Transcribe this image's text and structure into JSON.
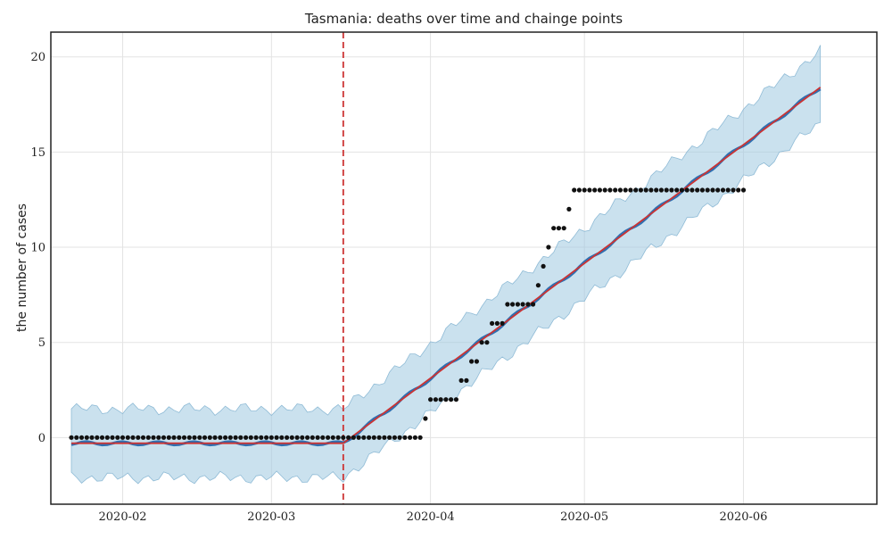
{
  "chart_data": {
    "type": "line",
    "title": "Tasmania: deaths over time and chainge points",
    "xlabel": "",
    "ylabel": "the number of cases",
    "x_ticks": [
      "2020-02",
      "2020-03",
      "2020-04",
      "2020-05",
      "2020-06"
    ],
    "y_ticks": [
      "0",
      "5",
      "10",
      "15",
      "20"
    ],
    "xlim": [
      "2020-01-18",
      "2020-06-27"
    ],
    "ylim": [
      -3.5,
      21.3
    ],
    "grid": true,
    "changepoint": "2020-03-15",
    "colors": {
      "observed": "#111111",
      "forecast": "#2f6fb0",
      "trend": "#cc3333",
      "band": "#9ec8e0",
      "changepoint": "#cc3333"
    },
    "trend_segments": [
      {
        "x0": "2020-01-22",
        "y0": -0.3,
        "x1": "2020-03-15",
        "y1": -0.3
      },
      {
        "x0": "2020-03-15",
        "y0": -0.3,
        "x1": "2020-06-16",
        "y1": 18.4
      }
    ],
    "uncertainty_half_width": {
      "before_changepoint": 1.8,
      "start_after": 1.8,
      "end": 1.9
    },
    "observed": [
      {
        "x": "2020-01-22",
        "y": 0
      },
      {
        "x": "2020-01-23",
        "y": 0
      },
      {
        "x": "2020-01-24",
        "y": 0
      },
      {
        "x": "2020-01-25",
        "y": 0
      },
      {
        "x": "2020-01-26",
        "y": 0
      },
      {
        "x": "2020-01-27",
        "y": 0
      },
      {
        "x": "2020-01-28",
        "y": 0
      },
      {
        "x": "2020-01-29",
        "y": 0
      },
      {
        "x": "2020-01-30",
        "y": 0
      },
      {
        "x": "2020-01-31",
        "y": 0
      },
      {
        "x": "2020-02-01",
        "y": 0
      },
      {
        "x": "2020-02-02",
        "y": 0
      },
      {
        "x": "2020-02-03",
        "y": 0
      },
      {
        "x": "2020-02-04",
        "y": 0
      },
      {
        "x": "2020-02-05",
        "y": 0
      },
      {
        "x": "2020-02-06",
        "y": 0
      },
      {
        "x": "2020-02-07",
        "y": 0
      },
      {
        "x": "2020-02-08",
        "y": 0
      },
      {
        "x": "2020-02-09",
        "y": 0
      },
      {
        "x": "2020-02-10",
        "y": 0
      },
      {
        "x": "2020-02-11",
        "y": 0
      },
      {
        "x": "2020-02-12",
        "y": 0
      },
      {
        "x": "2020-02-13",
        "y": 0
      },
      {
        "x": "2020-02-14",
        "y": 0
      },
      {
        "x": "2020-02-15",
        "y": 0
      },
      {
        "x": "2020-02-16",
        "y": 0
      },
      {
        "x": "2020-02-17",
        "y": 0
      },
      {
        "x": "2020-02-18",
        "y": 0
      },
      {
        "x": "2020-02-19",
        "y": 0
      },
      {
        "x": "2020-02-20",
        "y": 0
      },
      {
        "x": "2020-02-21",
        "y": 0
      },
      {
        "x": "2020-02-22",
        "y": 0
      },
      {
        "x": "2020-02-23",
        "y": 0
      },
      {
        "x": "2020-02-24",
        "y": 0
      },
      {
        "x": "2020-02-25",
        "y": 0
      },
      {
        "x": "2020-02-26",
        "y": 0
      },
      {
        "x": "2020-02-27",
        "y": 0
      },
      {
        "x": "2020-02-28",
        "y": 0
      },
      {
        "x": "2020-02-29",
        "y": 0
      },
      {
        "x": "2020-03-01",
        "y": 0
      },
      {
        "x": "2020-03-02",
        "y": 0
      },
      {
        "x": "2020-03-03",
        "y": 0
      },
      {
        "x": "2020-03-04",
        "y": 0
      },
      {
        "x": "2020-03-05",
        "y": 0
      },
      {
        "x": "2020-03-06",
        "y": 0
      },
      {
        "x": "2020-03-07",
        "y": 0
      },
      {
        "x": "2020-03-08",
        "y": 0
      },
      {
        "x": "2020-03-09",
        "y": 0
      },
      {
        "x": "2020-03-10",
        "y": 0
      },
      {
        "x": "2020-03-11",
        "y": 0
      },
      {
        "x": "2020-03-12",
        "y": 0
      },
      {
        "x": "2020-03-13",
        "y": 0
      },
      {
        "x": "2020-03-14",
        "y": 0
      },
      {
        "x": "2020-03-15",
        "y": 0
      },
      {
        "x": "2020-03-16",
        "y": 0
      },
      {
        "x": "2020-03-17",
        "y": 0
      },
      {
        "x": "2020-03-18",
        "y": 0
      },
      {
        "x": "2020-03-19",
        "y": 0
      },
      {
        "x": "2020-03-20",
        "y": 0
      },
      {
        "x": "2020-03-21",
        "y": 0
      },
      {
        "x": "2020-03-22",
        "y": 0
      },
      {
        "x": "2020-03-23",
        "y": 0
      },
      {
        "x": "2020-03-24",
        "y": 0
      },
      {
        "x": "2020-03-25",
        "y": 0
      },
      {
        "x": "2020-03-26",
        "y": 0
      },
      {
        "x": "2020-03-27",
        "y": 0
      },
      {
        "x": "2020-03-28",
        "y": 0
      },
      {
        "x": "2020-03-29",
        "y": 0
      },
      {
        "x": "2020-03-30",
        "y": 0
      },
      {
        "x": "2020-03-31",
        "y": 1
      },
      {
        "x": "2020-04-01",
        "y": 2
      },
      {
        "x": "2020-04-02",
        "y": 2
      },
      {
        "x": "2020-04-03",
        "y": 2
      },
      {
        "x": "2020-04-04",
        "y": 2
      },
      {
        "x": "2020-04-05",
        "y": 2
      },
      {
        "x": "2020-04-06",
        "y": 2
      },
      {
        "x": "2020-04-07",
        "y": 3
      },
      {
        "x": "2020-04-08",
        "y": 3
      },
      {
        "x": "2020-04-09",
        "y": 4
      },
      {
        "x": "2020-04-10",
        "y": 4
      },
      {
        "x": "2020-04-11",
        "y": 5
      },
      {
        "x": "2020-04-12",
        "y": 5
      },
      {
        "x": "2020-04-13",
        "y": 6
      },
      {
        "x": "2020-04-14",
        "y": 6
      },
      {
        "x": "2020-04-15",
        "y": 6
      },
      {
        "x": "2020-04-16",
        "y": 7
      },
      {
        "x": "2020-04-17",
        "y": 7
      },
      {
        "x": "2020-04-18",
        "y": 7
      },
      {
        "x": "2020-04-19",
        "y": 7
      },
      {
        "x": "2020-04-20",
        "y": 7
      },
      {
        "x": "2020-04-21",
        "y": 7
      },
      {
        "x": "2020-04-22",
        "y": 8
      },
      {
        "x": "2020-04-23",
        "y": 9
      },
      {
        "x": "2020-04-24",
        "y": 10
      },
      {
        "x": "2020-04-25",
        "y": 11
      },
      {
        "x": "2020-04-26",
        "y": 11
      },
      {
        "x": "2020-04-27",
        "y": 11
      },
      {
        "x": "2020-04-28",
        "y": 12
      },
      {
        "x": "2020-04-29",
        "y": 13
      },
      {
        "x": "2020-04-30",
        "y": 13
      },
      {
        "x": "2020-05-01",
        "y": 13
      },
      {
        "x": "2020-05-02",
        "y": 13
      },
      {
        "x": "2020-05-03",
        "y": 13
      },
      {
        "x": "2020-05-04",
        "y": 13
      },
      {
        "x": "2020-05-05",
        "y": 13
      },
      {
        "x": "2020-05-06",
        "y": 13
      },
      {
        "x": "2020-05-07",
        "y": 13
      },
      {
        "x": "2020-05-08",
        "y": 13
      },
      {
        "x": "2020-05-09",
        "y": 13
      },
      {
        "x": "2020-05-10",
        "y": 13
      },
      {
        "x": "2020-05-11",
        "y": 13
      },
      {
        "x": "2020-05-12",
        "y": 13
      },
      {
        "x": "2020-05-13",
        "y": 13
      },
      {
        "x": "2020-05-14",
        "y": 13
      },
      {
        "x": "2020-05-15",
        "y": 13
      },
      {
        "x": "2020-05-16",
        "y": 13
      },
      {
        "x": "2020-05-17",
        "y": 13
      },
      {
        "x": "2020-05-18",
        "y": 13
      },
      {
        "x": "2020-05-19",
        "y": 13
      },
      {
        "x": "2020-05-20",
        "y": 13
      },
      {
        "x": "2020-05-21",
        "y": 13
      },
      {
        "x": "2020-05-22",
        "y": 13
      },
      {
        "x": "2020-05-23",
        "y": 13
      },
      {
        "x": "2020-05-24",
        "y": 13
      },
      {
        "x": "2020-05-25",
        "y": 13
      },
      {
        "x": "2020-05-26",
        "y": 13
      },
      {
        "x": "2020-05-27",
        "y": 13
      },
      {
        "x": "2020-05-28",
        "y": 13
      },
      {
        "x": "2020-05-29",
        "y": 13
      },
      {
        "x": "2020-05-30",
        "y": 13
      },
      {
        "x": "2020-05-31",
        "y": 13
      },
      {
        "x": "2020-06-01",
        "y": 13
      }
    ]
  }
}
